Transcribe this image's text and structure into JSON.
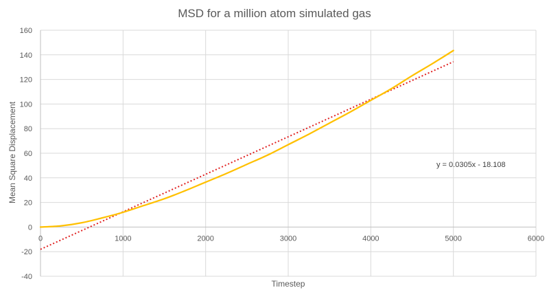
{
  "chart_data": {
    "type": "line",
    "title": "MSD for a million atom simulated  gas",
    "xlabel": "Timestep",
    "ylabel": "Mean Square Displacement",
    "xlim": [
      0,
      6000
    ],
    "ylim": [
      -40,
      160
    ],
    "x_ticks": [
      "0",
      "1000",
      "2000",
      "3000",
      "4000",
      "5000",
      "6000"
    ],
    "y_ticks": [
      "-40",
      "-20",
      "0",
      "20",
      "40",
      "60",
      "80",
      "100",
      "120",
      "140",
      "160"
    ],
    "grid": true,
    "series": [
      {
        "color": "#ffc000",
        "style": "solid",
        "x": [
          0,
          250,
          500,
          750,
          1000,
          1250,
          1500,
          1750,
          2000,
          2250,
          2500,
          2750,
          3000,
          3250,
          3500,
          3750,
          4000,
          4250,
          4500,
          4750,
          5000
        ],
        "y": [
          0,
          1,
          3.5,
          7.5,
          12,
          17.5,
          23,
          29.5,
          36.5,
          43.5,
          51,
          58.5,
          67,
          75.5,
          84.5,
          93.5,
          103,
          112.5,
          123,
          133,
          143.5
        ]
      }
    ],
    "trendline": {
      "type": "linear",
      "color": "#e02020",
      "style": "dotted",
      "slope": 0.0305,
      "intercept": -18.108,
      "x_range": [
        0,
        5000
      ],
      "equation": "y = 0.0305x - 18.108"
    }
  }
}
